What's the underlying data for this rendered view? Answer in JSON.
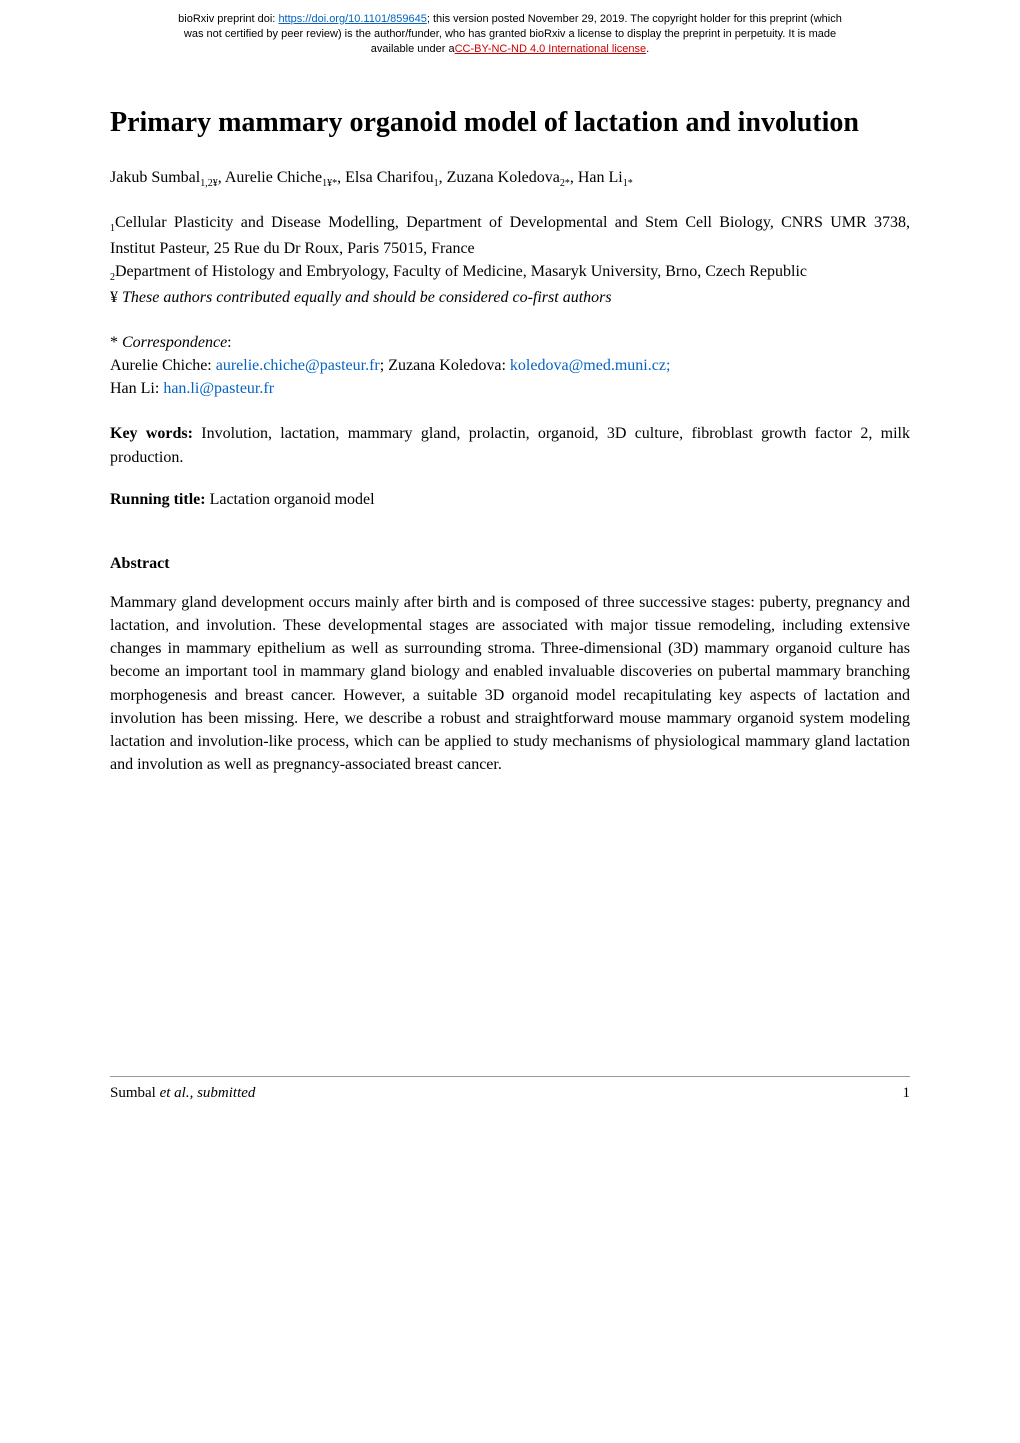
{
  "banner": {
    "line1_prefix": "bioRxiv preprint doi: ",
    "doi_url": "https://doi.org/10.1101/859645",
    "line1_suffix": "; this version posted November 29, 2019. The copyright holder for this preprint (which",
    "line2": "was not certified by peer review) is the author/funder, who has granted bioRxiv a license to display the preprint in perpetuity. It is made",
    "line3_prefix": "available under a",
    "license_text": "CC-BY-NC-ND 4.0 International license",
    "line3_suffix": "."
  },
  "title": "Primary mammary organoid model of lactation and involution",
  "authors": {
    "a1_name": "Jakub Sumbal",
    "a1_aff": "1,2¥",
    "a2_name": "Aurelie Chiche",
    "a2_aff": "1¥*",
    "a3_name": "Elsa Charifou",
    "a3_aff": "1",
    "a4_name": "Zuzana Koledova",
    "a4_aff": "2*",
    "a5_name": "Han Li",
    "a5_aff": "1*"
  },
  "affiliations": {
    "aff1_num": "1",
    "aff1_text": "Cellular Plasticity and Disease Modelling, Department of Developmental and Stem Cell Biology, CNRS UMR 3738, Institut Pasteur, 25 Rue du Dr Roux, Paris 75015, France",
    "aff2_num": "2",
    "aff2_text": "Department of Histology and Embryology, Faculty of Medicine, Masaryk University, Brno, Czech Republic",
    "contrib_symbol": "¥",
    "contrib_text": " These authors contributed equally and should be considered co-first authors"
  },
  "correspondence": {
    "symbol": "*",
    "label": " Correspondence",
    "colon": ":",
    "p1_name": "Aurelie Chiche",
    "p1_sep": ":  ",
    "p1_email": "aurelie.chiche@pasteur.fr",
    "p2_sep": "; ",
    "p2_name": "Zuzana Koledova: ",
    "p2_email": "koledova@med.muni.cz;",
    "p3_name": "Han Li: ",
    "p3_email": "han.li@pasteur.fr"
  },
  "keywords": {
    "label": "Key words:",
    "text": " Involution, lactation, mammary gland, prolactin, organoid, 3D culture, fibroblast growth factor 2, milk production."
  },
  "running_title": {
    "label": "Running title:",
    "text": " Lactation organoid model"
  },
  "abstract": {
    "heading": "Abstract",
    "body": "Mammary gland development occurs mainly after birth and is composed of three successive stages: puberty, pregnancy and lactation, and involution. These developmental stages are associated with major tissue remodeling, including extensive changes in mammary epithelium as well as surrounding stroma. Three-dimensional (3D) mammary organoid culture has become an important tool in mammary gland biology and enabled invaluable discoveries on pubertal mammary branching morphogenesis and breast cancer. However, a suitable 3D organoid model recapitulating key aspects of lactation and involution has been missing. Here, we describe a robust and straightforward mouse mammary organoid system modeling lactation and involution-like process, which can be applied to study mechanisms of physiological mammary gland lactation and involution as well as pregnancy-associated breast cancer."
  },
  "footer": {
    "left_prefix": "Sumbal ",
    "left_ital": "et al., submitted",
    "page_num": "1"
  }
}
